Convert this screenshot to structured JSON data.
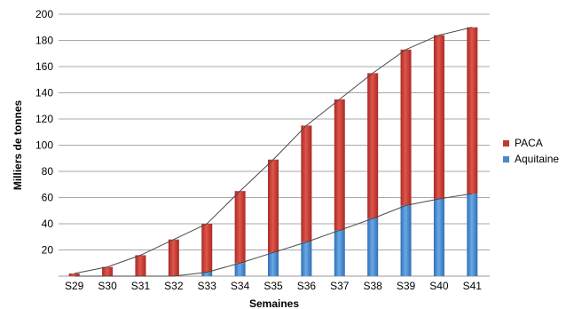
{
  "chart_data": {
    "type": "bar",
    "stacked": true,
    "categories": [
      "S29",
      "S30",
      "S31",
      "S32",
      "S33",
      "S34",
      "S35",
      "S36",
      "S37",
      "S38",
      "S39",
      "S40",
      "S41"
    ],
    "series": [
      {
        "name": "Aquitaine",
        "color": "#4a86c8",
        "values": [
          0,
          0,
          0,
          0,
          3,
          10,
          18,
          26,
          35,
          44,
          54,
          59,
          63
        ]
      },
      {
        "name": "PACA",
        "color": "#c0392b",
        "values": [
          2,
          7,
          16,
          28,
          37,
          55,
          71,
          89,
          100,
          111,
          119,
          125,
          127
        ]
      }
    ],
    "totals_line": [
      2,
      7,
      16,
      28,
      40,
      65,
      89,
      115,
      135,
      155,
      173,
      184,
      190
    ],
    "aquitaine_line": [
      0,
      0,
      0,
      0,
      3,
      10,
      18,
      26,
      35,
      44,
      54,
      59,
      63
    ],
    "title": "",
    "xlabel": "Semaines",
    "ylabel": "Milliers de tonnes",
    "ylim": [
      0,
      200
    ],
    "yticks": [
      20,
      40,
      60,
      80,
      100,
      120,
      140,
      160,
      180,
      200
    ],
    "grid": true,
    "legend_position": "right",
    "legend": [
      {
        "label": "PACA",
        "color": "#c0392b"
      },
      {
        "label": "Aquitaine",
        "color": "#4a86c8"
      }
    ]
  }
}
